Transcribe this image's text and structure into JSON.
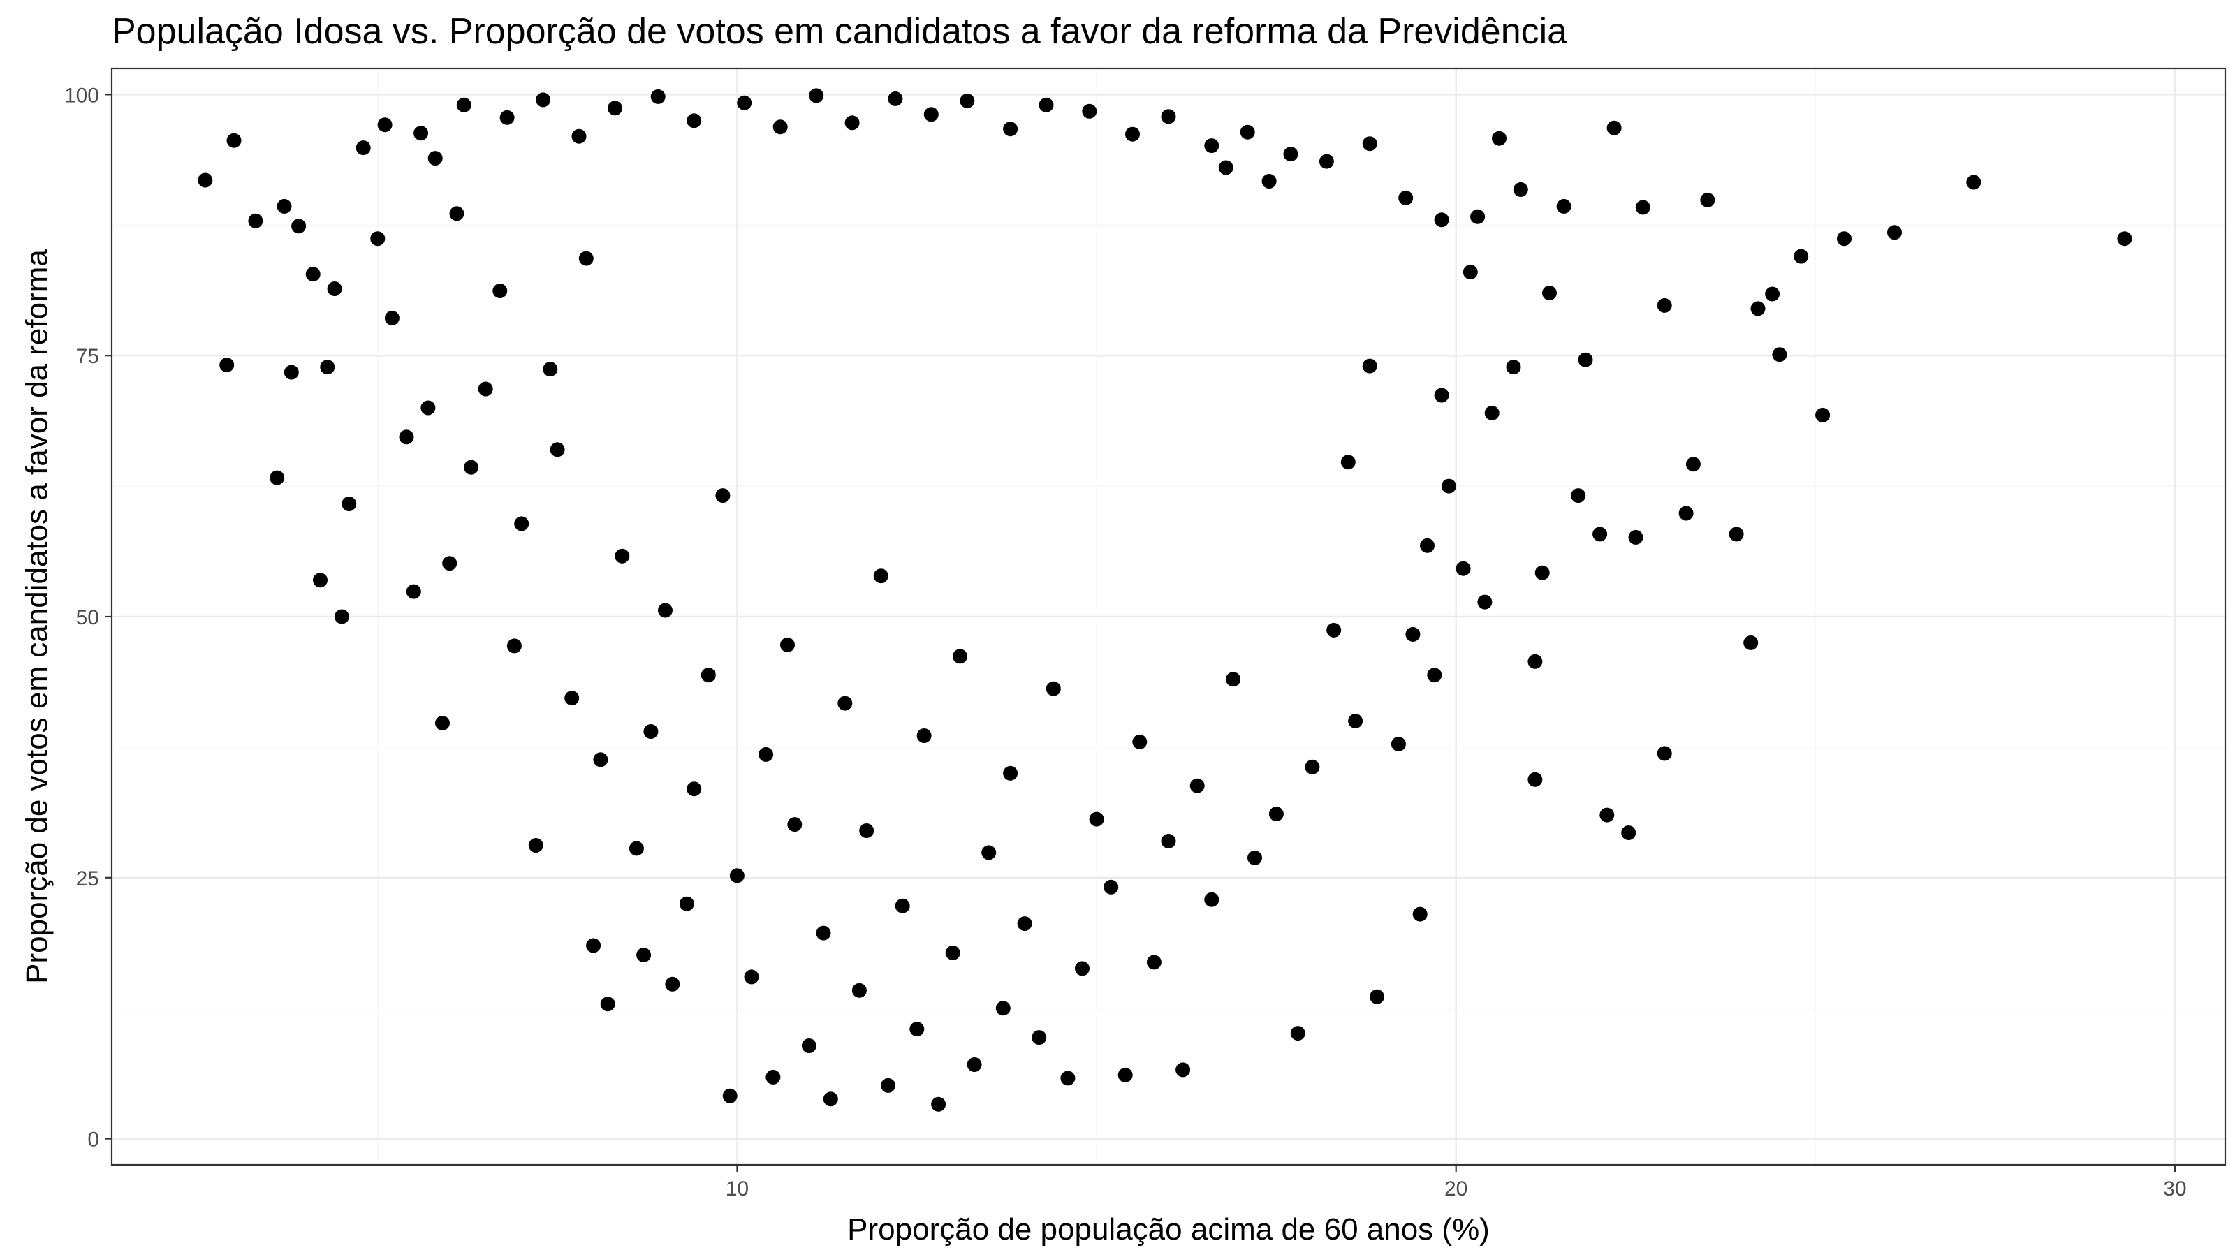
{
  "chart_data": {
    "type": "scatter",
    "title": "População Idosa vs. Proporção de votos em candidatos a favor da reforma da Previdência",
    "xlabel": "Proporção de população acima de 60 anos (%)",
    "ylabel": "Proporção de votos em candidatos a favor da reforma",
    "xlim": [
      1.3,
      30.7
    ],
    "ylim": [
      -2.5,
      102.5
    ],
    "x_ticks": [
      10,
      20,
      30
    ],
    "x_tick_labels": [
      "10",
      "20",
      "30"
    ],
    "y_ticks": [
      0,
      25,
      50,
      75,
      100
    ],
    "y_tick_labels": [
      "0",
      "25",
      "50",
      "75",
      "100"
    ],
    "grid": true,
    "legend": "none",
    "point_color": "#000000",
    "points": [
      [
        2.6,
        91.8
      ],
      [
        2.9,
        74.1
      ],
      [
        3.0,
        95.6
      ],
      [
        3.3,
        87.9
      ],
      [
        3.6,
        63.3
      ],
      [
        3.7,
        89.3
      ],
      [
        3.8,
        73.4
      ],
      [
        3.9,
        87.4
      ],
      [
        4.1,
        82.8
      ],
      [
        4.2,
        53.5
      ],
      [
        4.3,
        73.9
      ],
      [
        4.4,
        81.4
      ],
      [
        4.5,
        50.0
      ],
      [
        4.6,
        60.8
      ],
      [
        4.8,
        94.9
      ],
      [
        5.0,
        86.2
      ],
      [
        5.2,
        78.6
      ],
      [
        5.4,
        67.2
      ],
      [
        5.5,
        52.4
      ],
      [
        5.7,
        70.0
      ],
      [
        5.8,
        93.9
      ],
      [
        5.9,
        39.8
      ],
      [
        6.0,
        55.1
      ],
      [
        6.1,
        88.6
      ],
      [
        6.3,
        64.3
      ],
      [
        6.5,
        71.8
      ],
      [
        6.7,
        81.2
      ],
      [
        6.9,
        47.2
      ],
      [
        7.0,
        58.9
      ],
      [
        7.2,
        28.1
      ],
      [
        7.4,
        73.7
      ],
      [
        7.5,
        66.0
      ],
      [
        7.7,
        42.2
      ],
      [
        7.9,
        84.3
      ],
      [
        8.0,
        18.5
      ],
      [
        8.1,
        36.3
      ],
      [
        8.2,
        12.9
      ],
      [
        8.4,
        55.8
      ],
      [
        8.6,
        27.8
      ],
      [
        8.7,
        17.6
      ],
      [
        8.8,
        39.0
      ],
      [
        9.0,
        50.6
      ],
      [
        9.1,
        14.8
      ],
      [
        9.3,
        22.5
      ],
      [
        9.4,
        33.5
      ],
      [
        9.6,
        44.4
      ],
      [
        9.8,
        61.6
      ],
      [
        9.9,
        4.1
      ],
      [
        10.0,
        25.2
      ],
      [
        10.2,
        15.5
      ],
      [
        10.4,
        36.8
      ],
      [
        10.5,
        5.9
      ],
      [
        10.7,
        47.3
      ],
      [
        10.8,
        30.1
      ],
      [
        11.0,
        8.9
      ],
      [
        11.2,
        19.7
      ],
      [
        11.3,
        3.8
      ],
      [
        11.5,
        41.7
      ],
      [
        11.7,
        14.2
      ],
      [
        11.8,
        29.5
      ],
      [
        12.0,
        53.9
      ],
      [
        12.1,
        5.1
      ],
      [
        12.3,
        22.3
      ],
      [
        12.5,
        10.5
      ],
      [
        12.6,
        38.6
      ],
      [
        12.8,
        3.3
      ],
      [
        13.0,
        17.8
      ],
      [
        13.1,
        46.2
      ],
      [
        13.3,
        7.1
      ],
      [
        13.5,
        27.4
      ],
      [
        13.7,
        12.5
      ],
      [
        13.8,
        35.0
      ],
      [
        14.0,
        20.6
      ],
      [
        14.2,
        9.7
      ],
      [
        14.4,
        43.1
      ],
      [
        14.6,
        5.8
      ],
      [
        14.8,
        16.3
      ],
      [
        15.0,
        30.6
      ],
      [
        15.2,
        24.1
      ],
      [
        15.4,
        6.1
      ],
      [
        15.6,
        38.0
      ],
      [
        15.8,
        16.9
      ],
      [
        16.0,
        28.5
      ],
      [
        16.2,
        6.6
      ],
      [
        16.4,
        33.8
      ],
      [
        16.6,
        22.9
      ],
      [
        16.9,
        44.0
      ],
      [
        17.2,
        26.9
      ],
      [
        17.5,
        31.1
      ],
      [
        17.8,
        10.1
      ],
      [
        18.0,
        35.6
      ],
      [
        18.3,
        48.7
      ],
      [
        18.6,
        40.0
      ],
      [
        18.9,
        13.6
      ],
      [
        19.2,
        37.8
      ],
      [
        19.5,
        21.5
      ],
      [
        19.7,
        44.4
      ],
      [
        19.9,
        62.5
      ],
      [
        20.1,
        54.6
      ],
      [
        20.4,
        51.4
      ],
      [
        20.6,
        95.8
      ],
      [
        20.9,
        90.9
      ],
      [
        21.1,
        34.4
      ],
      [
        21.1,
        45.7
      ],
      [
        21.2,
        54.2
      ],
      [
        21.5,
        89.3
      ],
      [
        21.8,
        74.6
      ],
      [
        22.1,
        31.0
      ],
      [
        22.2,
        96.8
      ],
      [
        22.4,
        29.3
      ],
      [
        22.6,
        89.2
      ],
      [
        22.9,
        79.8
      ],
      [
        22.9,
        36.9
      ],
      [
        23.2,
        59.9
      ],
      [
        23.3,
        64.6
      ],
      [
        23.5,
        89.9
      ],
      [
        23.9,
        57.9
      ],
      [
        24.1,
        47.5
      ],
      [
        24.2,
        79.5
      ],
      [
        24.4,
        80.9
      ],
      [
        24.5,
        75.1
      ],
      [
        24.8,
        84.5
      ],
      [
        25.1,
        69.3
      ],
      [
        25.4,
        86.2
      ],
      [
        26.1,
        86.8
      ],
      [
        27.2,
        91.6
      ],
      [
        29.3,
        86.2
      ],
      [
        22.5,
        57.6
      ],
      [
        22.0,
        57.9
      ],
      [
        21.7,
        61.6
      ],
      [
        20.3,
        88.3
      ],
      [
        20.8,
        73.9
      ],
      [
        21.3,
        81.0
      ],
      [
        20.5,
        69.5
      ],
      [
        20.2,
        83.0
      ],
      [
        19.8,
        71.2
      ],
      [
        19.4,
        48.3
      ],
      [
        19.6,
        56.8
      ],
      [
        18.5,
        64.8
      ],
      [
        18.8,
        74.0
      ],
      [
        5.1,
        97.1
      ],
      [
        5.6,
        96.3
      ],
      [
        6.2,
        99.0
      ],
      [
        6.8,
        97.8
      ],
      [
        7.3,
        99.5
      ],
      [
        7.8,
        96.0
      ],
      [
        8.3,
        98.7
      ],
      [
        8.9,
        99.8
      ],
      [
        9.4,
        97.5
      ],
      [
        10.1,
        99.2
      ],
      [
        10.6,
        96.9
      ],
      [
        11.1,
        99.9
      ],
      [
        11.6,
        97.3
      ],
      [
        12.2,
        99.6
      ],
      [
        12.7,
        98.1
      ],
      [
        13.2,
        99.4
      ],
      [
        13.8,
        96.7
      ],
      [
        14.3,
        99.0
      ],
      [
        14.9,
        98.4
      ],
      [
        15.5,
        96.2
      ],
      [
        16.0,
        97.9
      ],
      [
        16.6,
        95.1
      ],
      [
        17.1,
        96.4
      ],
      [
        17.7,
        94.3
      ],
      [
        18.2,
        93.6
      ],
      [
        18.8,
        95.3
      ],
      [
        19.3,
        90.1
      ],
      [
        19.8,
        88.0
      ],
      [
        17.4,
        91.7
      ],
      [
        16.8,
        93.0
      ]
    ]
  }
}
